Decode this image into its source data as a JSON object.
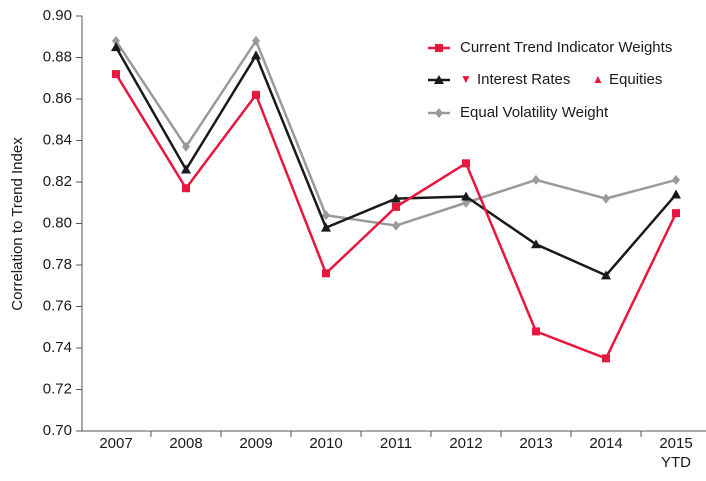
{
  "chart_data": {
    "type": "line",
    "y_label": "Correlation to Trend Index",
    "categories": [
      "2007",
      "2008",
      "2009",
      "2010",
      "2011",
      "2012",
      "2013",
      "2014",
      "2015\nYTD"
    ],
    "series": [
      {
        "name": "Current Trend Indicator Weights",
        "color": "#e8173f",
        "marker": "square",
        "values": [
          0.872,
          0.817,
          0.862,
          0.776,
          0.808,
          0.829,
          0.748,
          0.735,
          0.805
        ]
      },
      {
        "color": "#1a1a1a",
        "marker": "triangle",
        "legend_items": [
          {
            "symbol": "▼",
            "label": "Interest Rates",
            "color": "#e8173f"
          },
          {
            "symbol": "▲",
            "label": "Equities",
            "color": "#e8173f"
          }
        ],
        "values": [
          0.885,
          0.826,
          0.881,
          0.798,
          0.812,
          0.813,
          0.79,
          0.775,
          0.814
        ]
      },
      {
        "name": "Equal Volatility Weight",
        "color": "#9a9a9a",
        "marker": "diamond",
        "values": [
          0.888,
          0.837,
          0.888,
          0.804,
          0.799,
          0.81,
          0.821,
          0.812,
          0.821
        ]
      }
    ],
    "ylim": [
      0.7,
      0.9
    ],
    "yticks": [
      {
        "value": 0.7,
        "label": "0.70"
      },
      {
        "value": 0.72,
        "label": "0.72"
      },
      {
        "value": 0.74,
        "label": "0.74"
      },
      {
        "value": 0.76,
        "label": "0.76"
      },
      {
        "value": 0.78,
        "label": "0.78"
      },
      {
        "value": 0.8,
        "label": "0.80"
      },
      {
        "value": 0.82,
        "label": "0.82"
      },
      {
        "value": 0.84,
        "label": "0.84"
      },
      {
        "value": 0.86,
        "label": "0.86"
      },
      {
        "value": 0.88,
        "label": "0.88"
      },
      {
        "value": 0.9,
        "label": "0.90"
      }
    ],
    "grid": false
  }
}
